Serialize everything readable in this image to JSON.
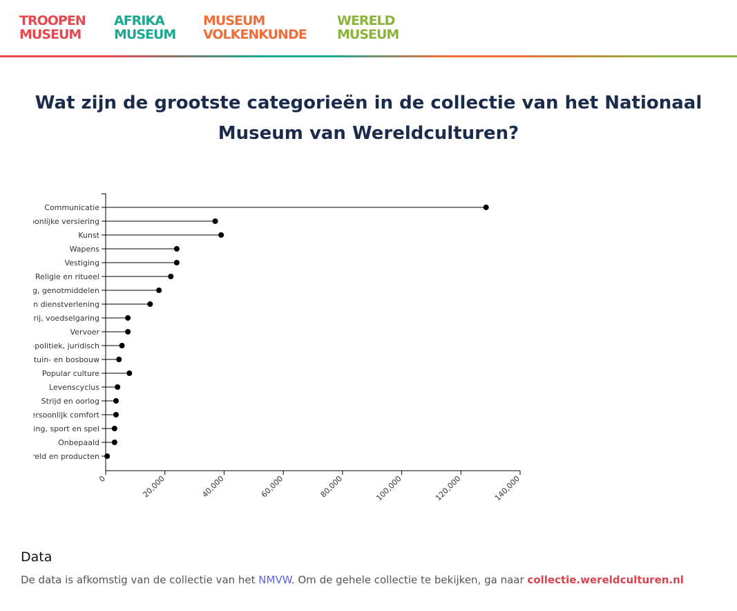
{
  "header": {
    "logos": [
      {
        "line1": "TROOPEN",
        "line2": "MUSEUM",
        "color": "#e5484d"
      },
      {
        "line1": "AFRIKA",
        "line2": "MUSEUM",
        "color": "#1aa890"
      },
      {
        "line1": "MUSEUM",
        "line2": "VOLKENKUNDE",
        "color": "#ee6d3a"
      },
      {
        "line1": "WERELD",
        "line2": "MUSEUM",
        "color": "#8cb43a"
      }
    ]
  },
  "title": "Wat zijn de grootste categorieën in de collectie van het Nationaal Museum van Wereldculturen?",
  "chart_data": {
    "type": "lollipop",
    "categories": [
      "Communicatie",
      "Persoonlijke versiering",
      "Kunst",
      "Wapens",
      "Vestiging",
      "Religie en ritueel",
      "Voeding, genotmiddelen",
      "Handel en dienstverlening",
      "Jacht, visserij, voedselgaring",
      "Vervoer",
      "Sociaal-politiek, juridisch",
      "Landbouw, tuin- en bosbouw",
      "Popular culture",
      "Levenscyclus",
      "Strijd en oorlog",
      "Persoonlijk comfort",
      "Ontspanning, sport en spel",
      "Onbepaald",
      "Wereld en producten"
    ],
    "values": [
      128500,
      37000,
      39000,
      24000,
      24000,
      22000,
      18000,
      15000,
      7500,
      7500,
      5500,
      4500,
      8000,
      4000,
      3500,
      3500,
      3000,
      3000,
      500
    ],
    "xlim": [
      0,
      140000
    ],
    "xticks": [
      "0",
      "20,000",
      "40,000",
      "60,000",
      "80,000",
      "100,000",
      "120,000",
      "140,000"
    ],
    "tick_values": [
      0,
      20000,
      40000,
      60000,
      80000,
      100000,
      120000,
      140000
    ],
    "dot_color": "#000000",
    "line_color": "#000000"
  },
  "data_section": {
    "heading": "Data",
    "text_before": "De data is afkomstig van de collectie van het ",
    "link1": "NMVW",
    "text_middle": ". Om de gehele collectie te bekijken, ga naar ",
    "link2": "collectie.wereldculturen.nl"
  }
}
